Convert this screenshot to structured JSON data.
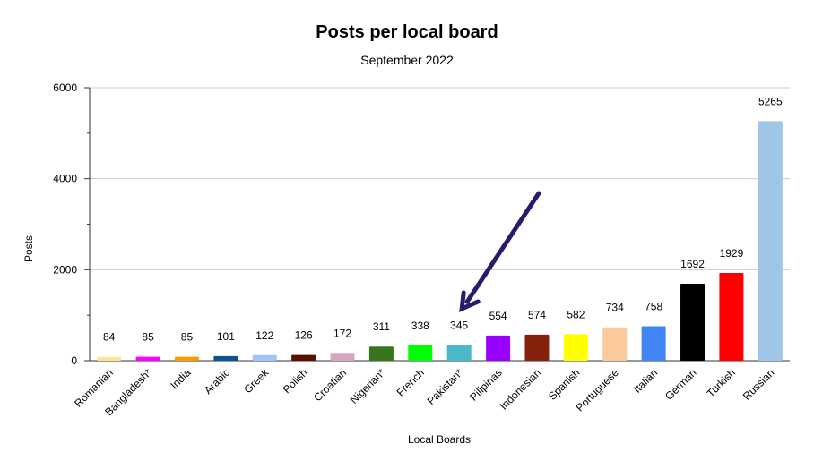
{
  "chart_data": {
    "type": "bar",
    "title": "Posts per local board",
    "subtitle": "September 2022",
    "xlabel": "Local Boards",
    "ylabel": "Posts",
    "ylim": [
      0,
      6000
    ],
    "yticks": [
      0,
      2000,
      4000,
      6000
    ],
    "grid": true,
    "legend": "none",
    "categories": [
      "Romanian",
      "Bangladesh*",
      "India",
      "Arabic",
      "Greek",
      "Polish",
      "Croatian",
      "Nigerian*",
      "French",
      "Pakistan*",
      "Pilipinas",
      "Indonesian",
      "Spanish",
      "Portuguese",
      "Italian",
      "German",
      "Turkish",
      "Russian"
    ],
    "values": [
      84,
      85,
      85,
      101,
      122,
      126,
      172,
      311,
      338,
      345,
      554,
      574,
      582,
      734,
      758,
      1692,
      1929,
      5265
    ],
    "colors": [
      "#ffe599",
      "#ff00ff",
      "#ff9900",
      "#0b5394",
      "#a4c2f4",
      "#5b0f00",
      "#d5a6bd",
      "#38761d",
      "#00ff00",
      "#4ab8c8",
      "#9900ff",
      "#85200c",
      "#ffff00",
      "#f9cb9c",
      "#4285f4",
      "#000000",
      "#ff0000",
      "#9fc5e8"
    ],
    "annotation": {
      "type": "arrow",
      "points_to": "Pakistan*",
      "color": "#2b1a6b"
    }
  }
}
